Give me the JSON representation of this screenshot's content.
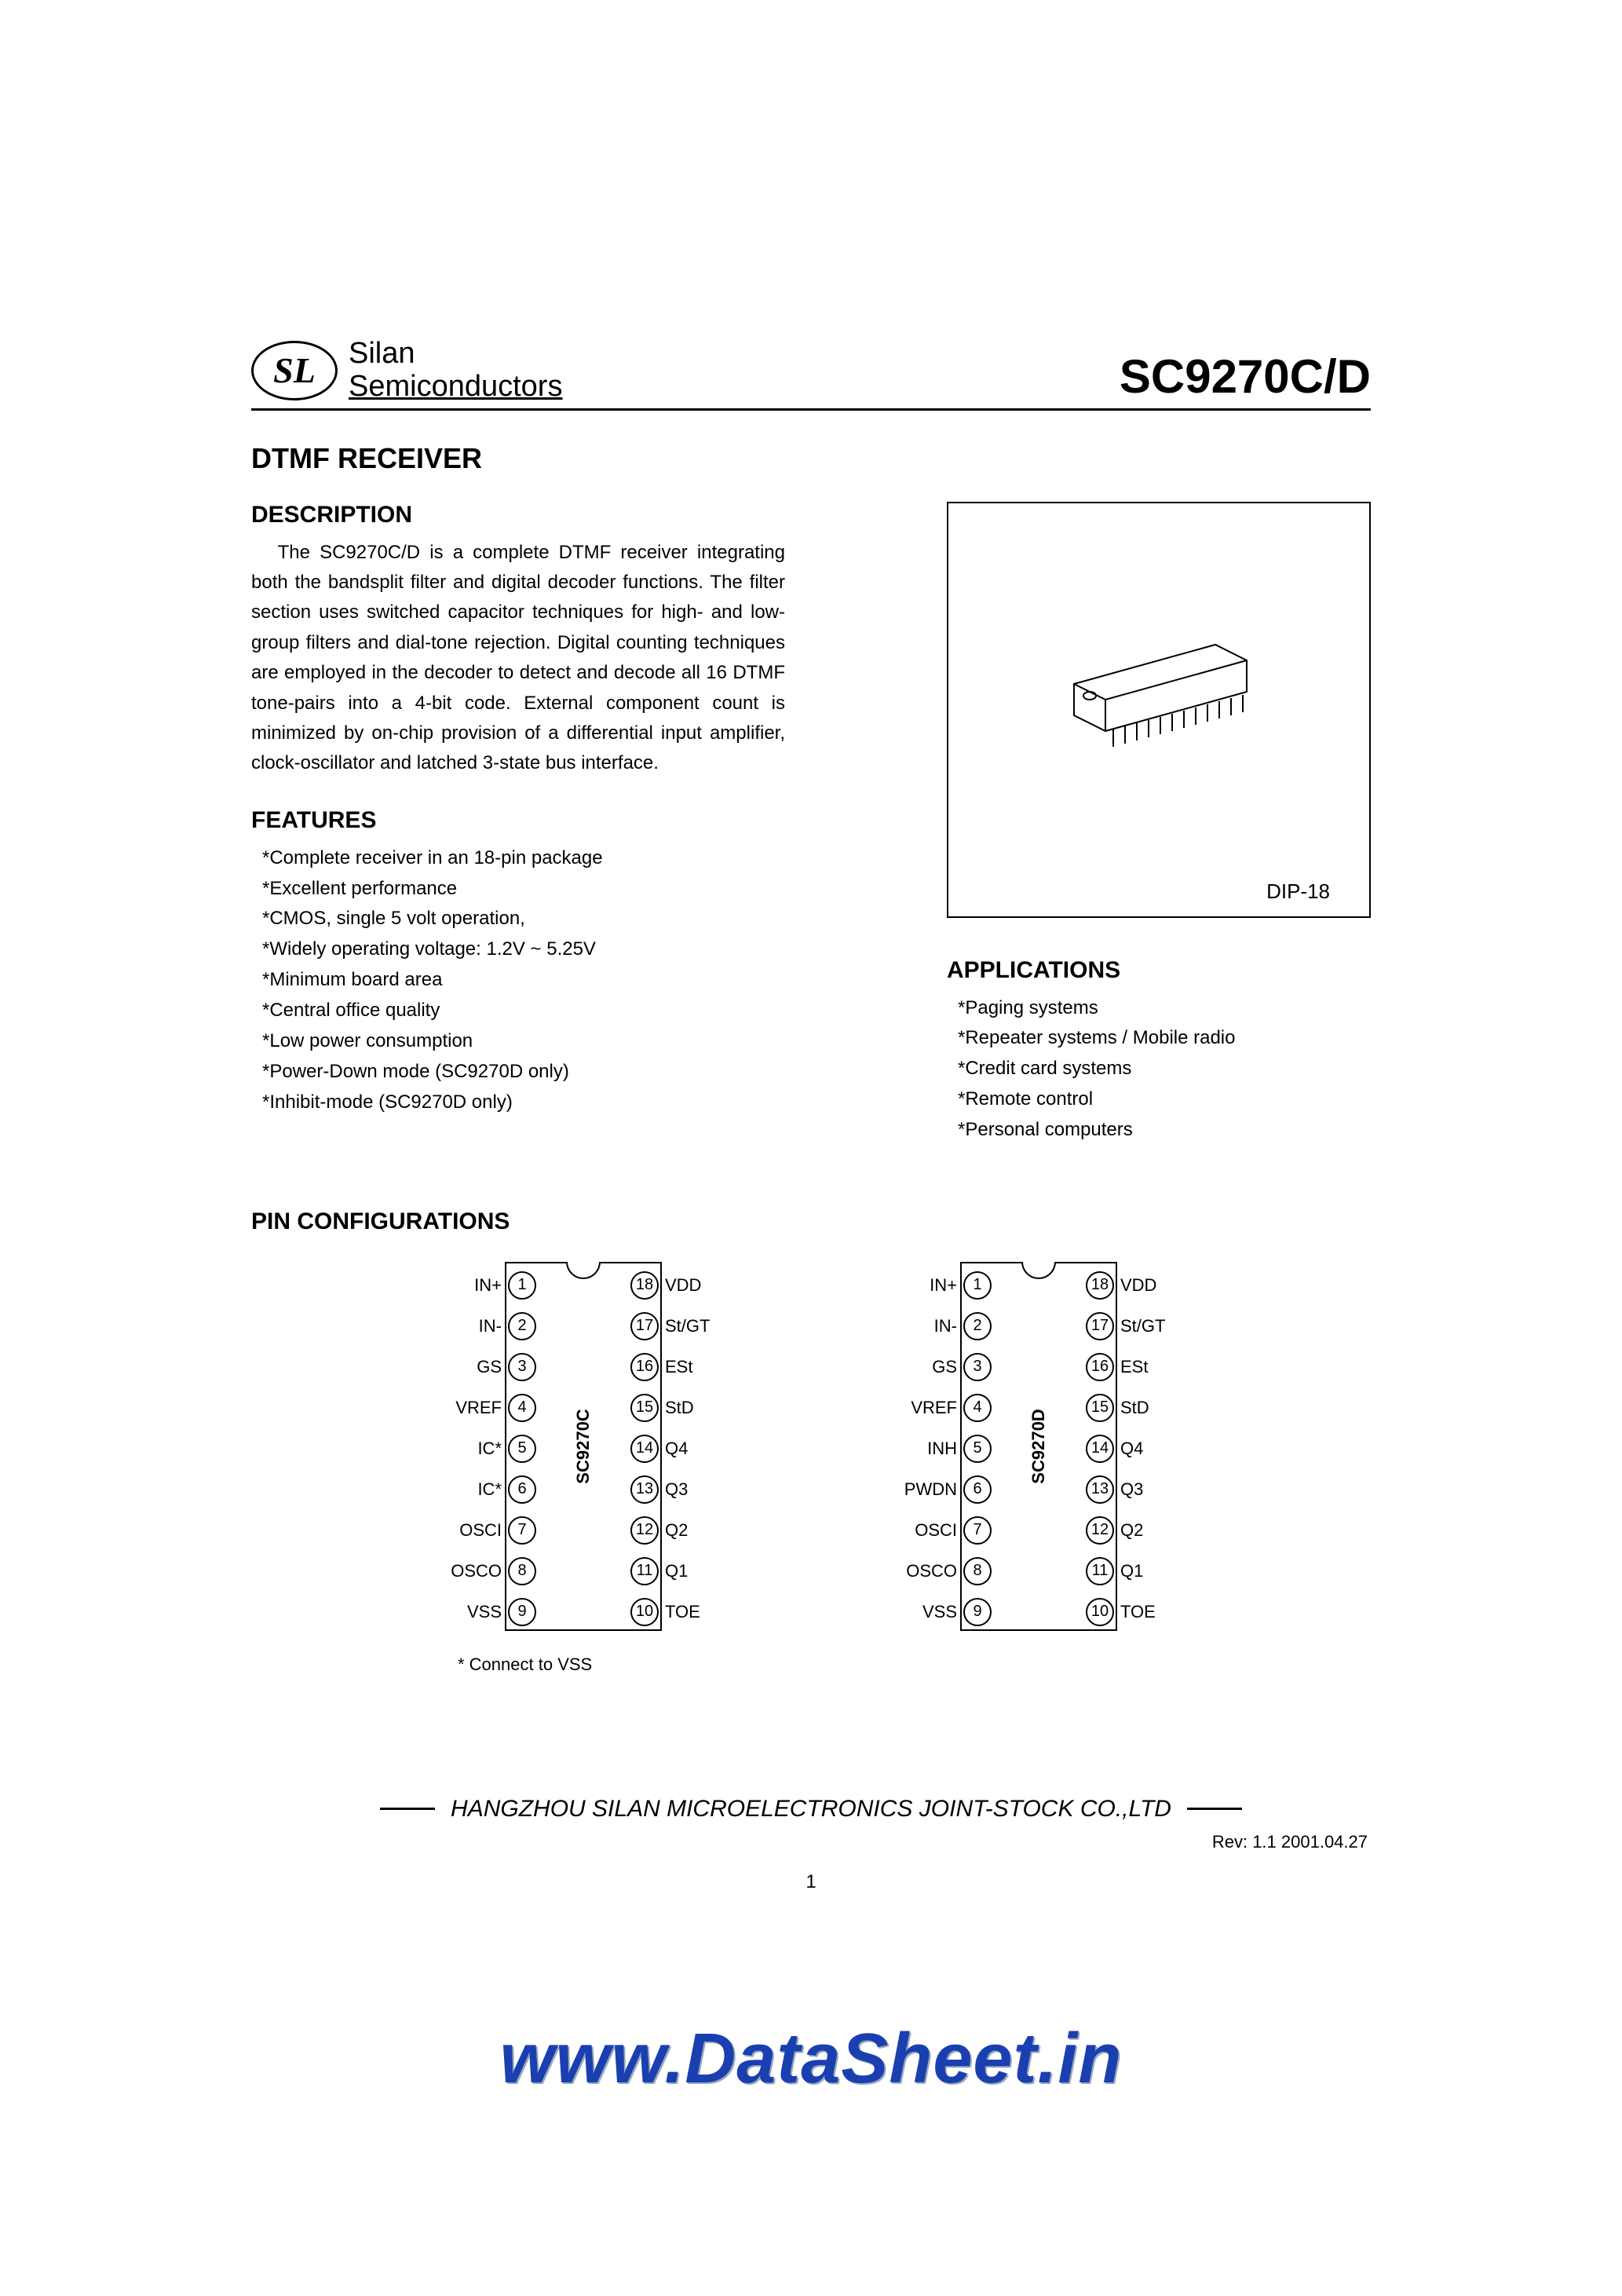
{
  "header": {
    "logo_mark": "SL",
    "logo_line1": "Silan",
    "logo_line2": "Semiconductors",
    "part_number": "SC9270C/D"
  },
  "title": "DTMF RECEIVER",
  "description": {
    "heading": "DESCRIPTION",
    "body": "The SC9270C/D is a complete DTMF receiver integrating both the bandsplit filter and digital decoder functions. The filter section uses switched capacitor techniques for high- and low-group filters and dial-tone rejection. Digital counting techniques are employed in the decoder to detect and decode all 16 DTMF tone-pairs into a 4-bit code. External component count is minimized by on-chip provision of a differential input amplifier, clock-oscillator and latched 3-state bus interface."
  },
  "features": {
    "heading": "FEATURES",
    "items": [
      "*Complete receiver in an 18-pin package",
      "*Excellent performance",
      "*CMOS, single 5 volt operation,",
      "*Widely operating voltage: 1.2V ~ 5.25V",
      "*Minimum board area",
      "*Central office quality",
      "*Low power consumption",
      "*Power-Down mode (SC9270D only)",
      "*Inhibit-mode (SC9270D only)"
    ]
  },
  "package": {
    "label": "DIP-18"
  },
  "applications": {
    "heading": "APPLICATIONS",
    "items": [
      "*Paging systems",
      "*Repeater systems / Mobile radio",
      "*Credit card systems",
      "*Remote control",
      "*Personal computers"
    ]
  },
  "pin_config": {
    "heading": "PIN CONFIGURATIONS",
    "footnote": "* Connect to VSS",
    "chips": [
      {
        "name": "SC9270C",
        "left": [
          "IN+",
          "IN-",
          "GS",
          "VREF",
          "IC*",
          "IC*",
          "OSCI",
          "OSCO",
          "VSS"
        ],
        "right": [
          "VDD",
          "St/GT",
          "ESt",
          "StD",
          "Q4",
          "Q3",
          "Q2",
          "Q1",
          "TOE"
        ]
      },
      {
        "name": "SC9270D",
        "left": [
          "IN+",
          "IN-",
          "GS",
          "VREF",
          "INH",
          "PWDN",
          "OSCI",
          "OSCO",
          "VSS"
        ],
        "right": [
          "VDD",
          "St/GT",
          "ESt",
          "StD",
          "Q4",
          "Q3",
          "Q2",
          "Q1",
          "TOE"
        ]
      }
    ]
  },
  "footer": {
    "company": "HANGZHOU SILAN MICROELECTRONICS JOINT-STOCK CO.,LTD",
    "rev": "Rev: 1.1     2001.04.27",
    "page": "1"
  },
  "watermark": "www.DataSheet.in",
  "colors": {
    "watermark": "#1a3fb0",
    "text": "#000000",
    "background": "#ffffff"
  }
}
